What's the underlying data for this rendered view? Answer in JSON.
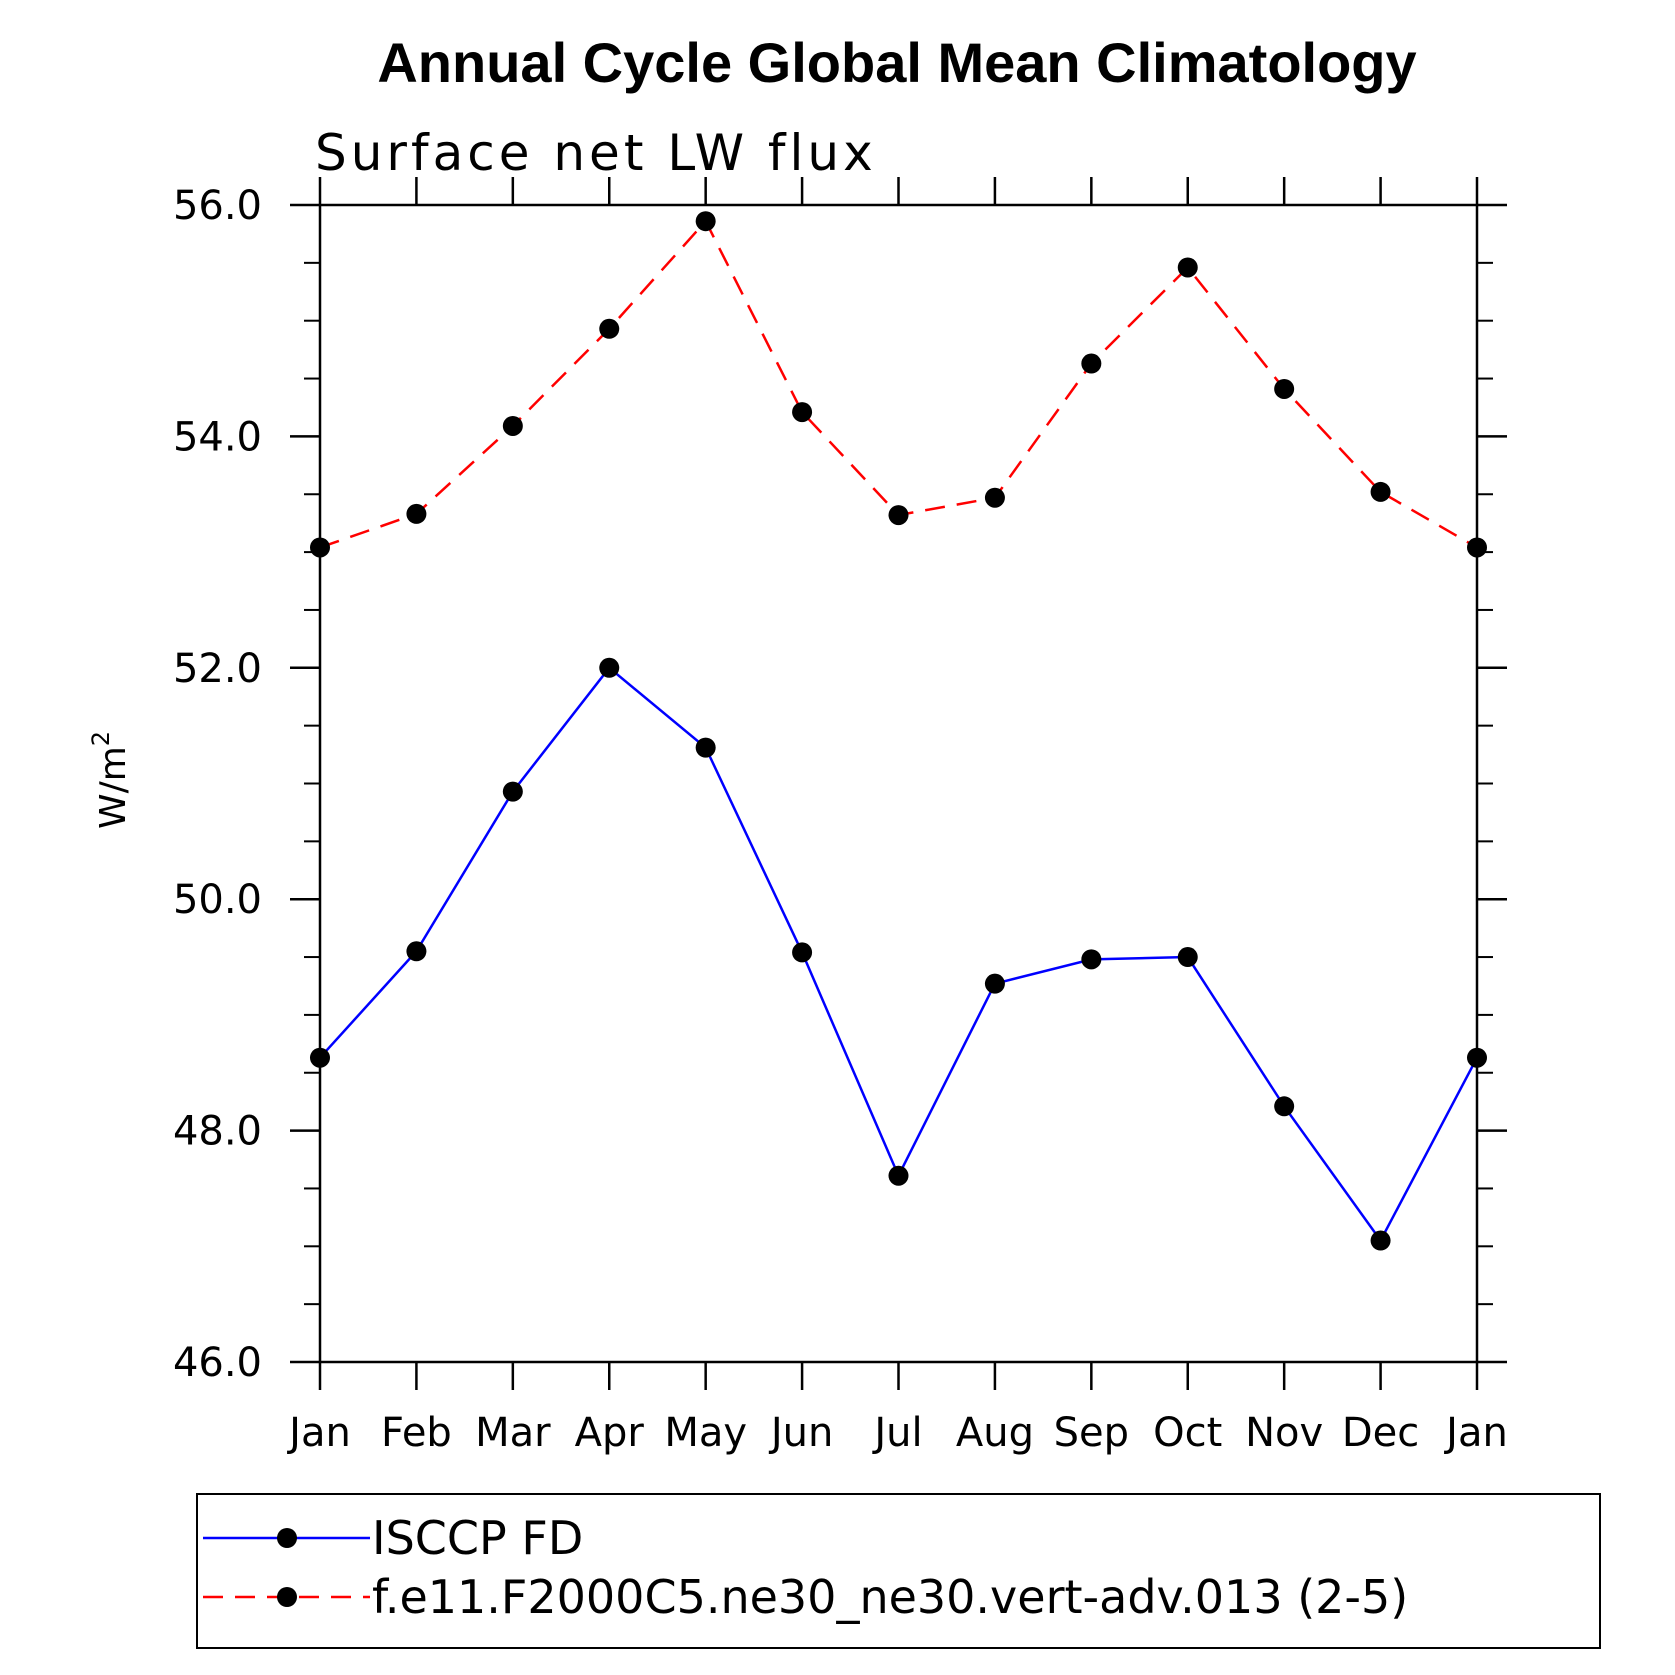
{
  "chart_data": {
    "type": "line",
    "title": "Annual Cycle Global Mean Climatology",
    "subtitle": "Surface net LW flux",
    "ylabel": "W/m",
    "ylabel_superscript": "2",
    "ylim": [
      46.0,
      56.0
    ],
    "yticks": [
      "46.0",
      "48.0",
      "50.0",
      "52.0",
      "54.0",
      "56.0"
    ],
    "categories": [
      "Jan",
      "Feb",
      "Mar",
      "Apr",
      "May",
      "Jun",
      "Jul",
      "Aug",
      "Sep",
      "Oct",
      "Nov",
      "Dec",
      "Jan"
    ],
    "series": [
      {
        "name": "ISCCP FD",
        "color": "#0000ff",
        "dash": "solid",
        "values": [
          48.63,
          49.55,
          50.93,
          52.0,
          51.31,
          49.54,
          47.61,
          49.27,
          49.48,
          49.5,
          48.21,
          47.05,
          48.63
        ]
      },
      {
        "name": "f.e11.F2000C5.ne30_ne30.vert-adv.013 (2-5)",
        "color": "#ff0000",
        "dash": "dashed",
        "values": [
          53.04,
          53.33,
          54.09,
          54.93,
          55.86,
          54.21,
          53.32,
          53.47,
          54.63,
          55.46,
          54.41,
          53.52,
          53.04
        ]
      }
    ],
    "marker": "filled-circle",
    "marker_color": "#000000",
    "legend_position": "bottom",
    "grid": false
  }
}
